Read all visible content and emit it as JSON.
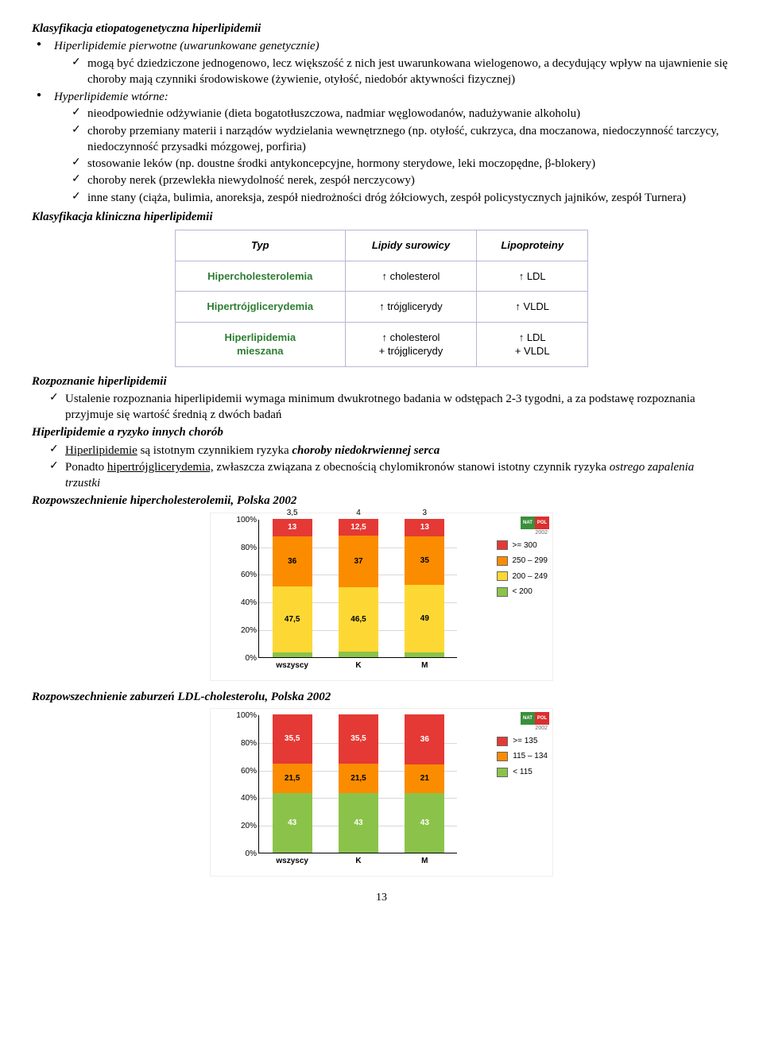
{
  "h_klas_etio": "Klasyfikacja etiopatogenetyczna hiperlipidemii",
  "bullet_pierwotne": "Hiperlipidemie pierwotne (uwarunkowane genetycznie)",
  "chk_pierwotne_1_pre": "mogą być dziedziczone jednogenowo, lecz większość z nich jest uwarunkowana wielogenowo, a decydujący wpływ na ujawnienie się choroby mają czynniki środowiskowe (żywienie, otyłość, niedobór aktywności fizycznej)",
  "bullet_wtorne": "Hyperlipidemie wtórne:",
  "chk_w1": "nieodpowiednie odżywianie (dieta bogatotłuszczowa, nadmiar węglowodanów, nadużywanie alkoholu)",
  "chk_w2": "choroby przemiany materii i narządów wydzielania wewnętrznego (np. otyłość, cukrzyca, dna moczanowa, niedoczynność tarczycy, niedoczynność przysadki mózgowej, porfiria)",
  "chk_w3": "stosowanie leków (np. doustne środki antykoncepcyjne, hormony sterydowe, leki moczopędne, β-blokery)",
  "chk_w4": "choroby nerek (przewlekła niewydolność nerek, zespół nerczycowy)",
  "chk_w5": "inne stany (ciąża, bulimia, anoreksja, zespół niedrożności dróg żółciowych, zespół policystycznych jajników, zespół Turnera)",
  "h_klas_klin": "Klasyfikacja kliniczna hiperlipidemii",
  "table": {
    "headers": [
      "Typ",
      "Lipidy surowicy",
      "Lipoproteiny"
    ],
    "rows": [
      {
        "label": "Hipercholesterolemia",
        "lipids": "↑ cholesterol",
        "lipo": "↑ LDL"
      },
      {
        "label": "Hipertrójglicerydemia",
        "lipids": "↑ trójglicerydy",
        "lipo": "↑ VLDL"
      },
      {
        "label": "Hiperlipidemia\nmieszana",
        "lipids": "↑ cholesterol\n+ trójglicerydy",
        "lipo": "↑ LDL\n+ VLDL"
      }
    ],
    "row_label_color": "#2e7d32",
    "border_color": "#b6b6d6",
    "header_style": "bold-italic"
  },
  "h_rozpoznanie": "Rozpoznanie hiperlipidemii",
  "chk_roz": "Ustalenie rozpoznania hiperlipidemii wymaga minimum dwukrotnego badania w odstępach 2-3 tygodni, a za podstawę rozpoznania przyjmuje się wartość średnią z dwóch badań",
  "h_ryzyko": "Hiperlipidemie a ryzyko innych chorób",
  "chk_ry1_a": "Hiperlipidemie",
  "chk_ry1_b": " są istotnym czynnikiem ryzyka ",
  "chk_ry1_c": "choroby niedokrwiennej serca",
  "chk_ry2_a": "Ponadto ",
  "chk_ry2_b": "hipertrójglicerydemia,",
  "chk_ry2_c": " zwłaszcza związana z obecnością chylomikronów stanowi istotny czynnik ryzyka ",
  "chk_ry2_d": "ostrego zapalenia trzustki",
  "h_chart1": "Rozpowszechnienie hipercholesterolemii, Polska 2002",
  "chart1": {
    "type": "stacked-bar",
    "ylim": [
      0,
      100
    ],
    "ytick_step": 20,
    "y_format": "percent",
    "categories": [
      "wszyscy",
      "K",
      "M"
    ],
    "top_labels": [
      "3,5",
      "4",
      "3"
    ],
    "segments_order_top_to_bottom": [
      "red",
      "orange",
      "yellow",
      "green"
    ],
    "colors": {
      "red": "#e53935",
      "orange": "#fb8c00",
      "yellow": "#fdd835",
      "green": "#8bc34a"
    },
    "data": {
      "wszyscy": {
        "red": 13,
        "orange": 36,
        "yellow": 47.5,
        "green_remainder": true
      },
      "K": {
        "red": 12.5,
        "orange": 37,
        "yellow": 46.5,
        "green_remainder": true
      },
      "M": {
        "red": 13,
        "orange": 35,
        "yellow": 49,
        "green_remainder": true
      }
    },
    "value_labels": {
      "wszyscy": [
        "13",
        "36",
        "47,5"
      ],
      "K": [
        "12,5",
        "37",
        "46,5"
      ],
      "M": [
        "13",
        "35",
        "49"
      ]
    },
    "legend": [
      {
        "color": "red",
        "label": ">= 300"
      },
      {
        "color": "orange",
        "label": "250 – 299"
      },
      {
        "color": "yellow",
        "label": "200 – 249"
      },
      {
        "color": "green",
        "label": "< 200"
      }
    ],
    "logo": {
      "left": "NAT",
      "right": "POL",
      "sub": "2002"
    }
  },
  "h_chart2": "Rozpowszechnienie zaburzeń LDL-cholesterolu, Polska 2002",
  "chart2": {
    "type": "stacked-bar",
    "ylim": [
      0,
      100
    ],
    "ytick_step": 20,
    "y_format": "percent",
    "categories": [
      "wszyscy",
      "K",
      "M"
    ],
    "segments_order_top_to_bottom": [
      "red",
      "orange",
      "green"
    ],
    "colors": {
      "red": "#e53935",
      "orange": "#fb8c00",
      "green": "#8bc34a"
    },
    "data": {
      "wszyscy": {
        "red": 35.5,
        "orange": 21.5,
        "green": 43
      },
      "K": {
        "red": 35.5,
        "orange": 21.5,
        "green": 43
      },
      "M": {
        "red": 36,
        "orange": 21,
        "green": 43
      }
    },
    "value_labels": {
      "wszyscy": [
        "35,5",
        "21,5",
        "43"
      ],
      "K": [
        "35,5",
        "21,5",
        "43"
      ],
      "M": [
        "36",
        "21",
        "43"
      ]
    },
    "legend": [
      {
        "color": "red",
        "label": ">= 135"
      },
      {
        "color": "orange",
        "label": "115 – 134"
      },
      {
        "color": "green",
        "label": "< 115"
      }
    ],
    "logo": {
      "left": "NAT",
      "right": "POL",
      "sub": "2002"
    }
  },
  "page_number": "13"
}
